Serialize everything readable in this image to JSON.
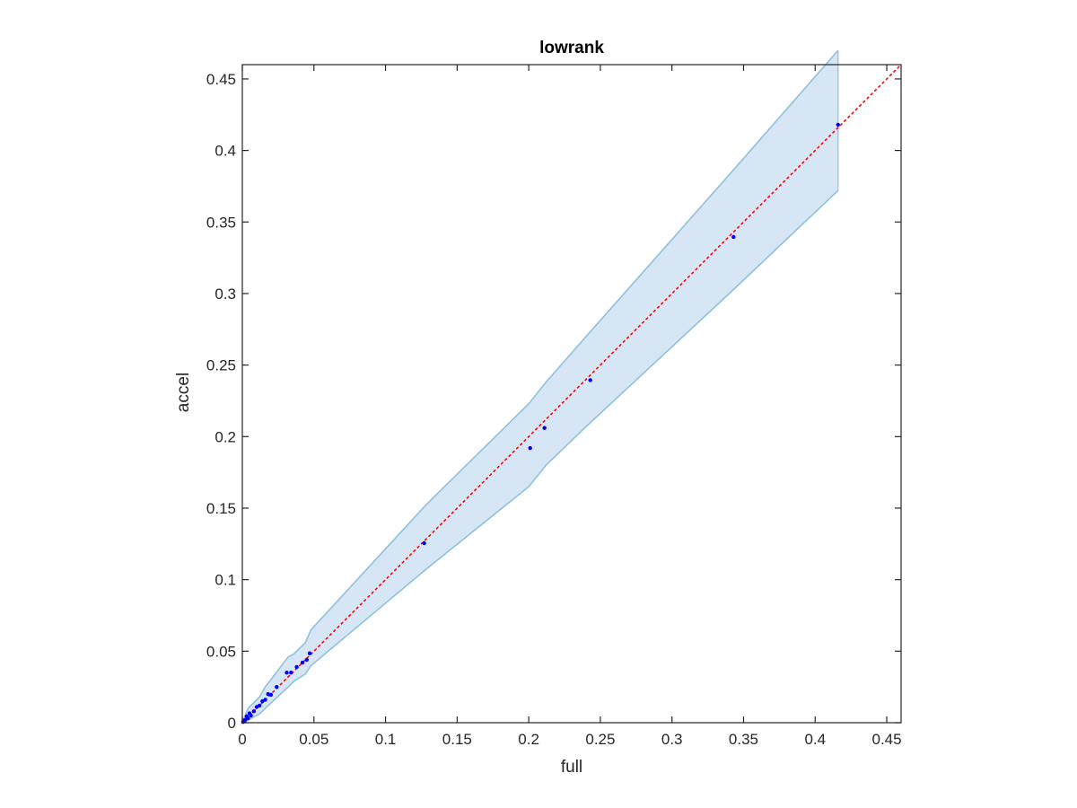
{
  "chart_data": {
    "type": "scatter",
    "title": "lowrank",
    "xlabel": "full",
    "ylabel": "accel",
    "xlim": [
      0,
      0.46
    ],
    "ylim": [
      0,
      0.46
    ],
    "x_ticks": [
      0,
      0.05,
      0.1,
      0.15,
      0.2,
      0.25,
      0.3,
      0.35,
      0.4,
      0.45
    ],
    "x_tick_labels": [
      "0",
      "0.05",
      "0.1",
      "0.15",
      "0.2",
      "0.25",
      "0.3",
      "0.35",
      "0.4",
      "0.45"
    ],
    "y_ticks": [
      0,
      0.05,
      0.1,
      0.15,
      0.2,
      0.25,
      0.3,
      0.35,
      0.4,
      0.45
    ],
    "y_tick_labels": [
      "0",
      "0.05",
      "0.1",
      "0.15",
      "0.2",
      "0.25",
      "0.3",
      "0.35",
      "0.4",
      "0.45"
    ],
    "grid": false,
    "points": {
      "color": "#0000ff",
      "x": [
        0.0005,
        0.001,
        0.0015,
        0.002,
        0.003,
        0.004,
        0.005,
        0.006,
        0.008,
        0.01,
        0.012,
        0.014,
        0.016,
        0.018,
        0.02,
        0.024,
        0.031,
        0.034,
        0.038,
        0.042,
        0.045,
        0.047,
        0.127,
        0.201,
        0.211,
        0.243,
        0.343,
        0.416
      ],
      "y": [
        0.0005,
        0.0015,
        0.001,
        0.002,
        0.0045,
        0.003,
        0.0065,
        0.005,
        0.008,
        0.011,
        0.012,
        0.015,
        0.016,
        0.02,
        0.0195,
        0.025,
        0.035,
        0.035,
        0.039,
        0.042,
        0.044,
        0.0485,
        0.1255,
        0.192,
        0.206,
        0.2395,
        0.3395,
        0.418
      ]
    },
    "identity_line": {
      "color": "#ff0000",
      "style": "dotted",
      "from": [
        0,
        0
      ],
      "to": [
        0.46,
        0.46
      ]
    },
    "confidence_band": {
      "fill": "#d6e6f4",
      "stroke": "#8ec1de",
      "x": [
        0,
        0.004,
        0.012,
        0.016,
        0.032,
        0.036,
        0.044,
        0.048,
        0.128,
        0.2,
        0.212,
        0.24,
        0.34,
        0.416
      ],
      "upper": [
        0,
        0.01,
        0.018,
        0.025,
        0.046,
        0.048,
        0.056,
        0.065,
        0.152,
        0.223,
        0.238,
        0.27,
        0.383,
        0.47
      ],
      "lower": [
        0,
        0.002,
        0.006,
        0.01,
        0.025,
        0.029,
        0.034,
        0.04,
        0.107,
        0.165,
        0.18,
        0.207,
        0.3,
        0.372
      ]
    }
  }
}
